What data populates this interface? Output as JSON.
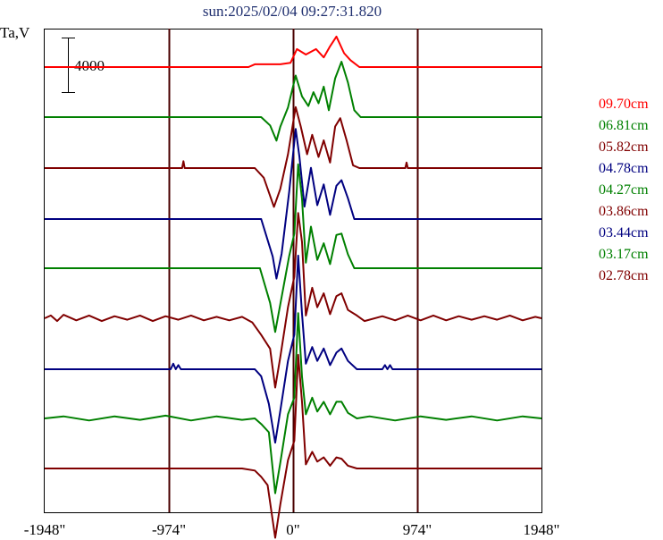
{
  "chart_data": {
    "type": "line",
    "title": "sun:2025/02/04 09:27:31.820",
    "ylabel": "Ta,V",
    "scale_label": "4000",
    "x_ticks": [
      {
        "label": "-1948\"",
        "value": -1948
      },
      {
        "label": "-974\"",
        "value": -974
      },
      {
        "label": "0\"",
        "value": 0
      },
      {
        "label": "974\"",
        "value": 974
      },
      {
        "label": "1948\"",
        "value": 1948
      }
    ],
    "xlim": [
      -1948,
      1948
    ],
    "vertical_lines": [
      -974,
      0,
      974
    ],
    "series": [
      {
        "name": "09.70cm",
        "color": "#ff0000",
        "baseline": 75,
        "points": [
          [
            -1948,
            0
          ],
          [
            -350,
            0
          ],
          [
            -300,
            200
          ],
          [
            -100,
            200
          ],
          [
            -20,
            300
          ],
          [
            30,
            1300
          ],
          [
            100,
            900
          ],
          [
            180,
            1300
          ],
          [
            240,
            700
          ],
          [
            290,
            1500
          ],
          [
            340,
            2200
          ],
          [
            400,
            1000
          ],
          [
            450,
            500
          ],
          [
            520,
            0
          ],
          [
            1948,
            0
          ]
        ]
      },
      {
        "name": "06.81cm",
        "color": "#008000",
        "baseline": 131,
        "points": [
          [
            -1948,
            0
          ],
          [
            -250,
            0
          ],
          [
            -180,
            -600
          ],
          [
            -130,
            -1700
          ],
          [
            -100,
            -700
          ],
          [
            -40,
            700
          ],
          [
            20,
            3000
          ],
          [
            70,
            1500
          ],
          [
            120,
            800
          ],
          [
            160,
            1800
          ],
          [
            200,
            1000
          ],
          [
            240,
            2200
          ],
          [
            280,
            500
          ],
          [
            330,
            2800
          ],
          [
            380,
            4000
          ],
          [
            430,
            2500
          ],
          [
            480,
            500
          ],
          [
            530,
            0
          ],
          [
            1948,
            0
          ]
        ]
      },
      {
        "name": "05.82cm",
        "color": "#800000",
        "baseline": 188,
        "points": [
          [
            -1948,
            0
          ],
          [
            -870,
            0
          ],
          [
            -860,
            500
          ],
          [
            -850,
            0
          ],
          [
            -300,
            0
          ],
          [
            -230,
            -700
          ],
          [
            -150,
            -2800
          ],
          [
            -100,
            -1500
          ],
          [
            -40,
            1000
          ],
          [
            20,
            4400
          ],
          [
            60,
            3000
          ],
          [
            110,
            1000
          ],
          [
            150,
            2400
          ],
          [
            200,
            800
          ],
          [
            240,
            2000
          ],
          [
            290,
            400
          ],
          [
            330,
            3000
          ],
          [
            370,
            3600
          ],
          [
            420,
            2000
          ],
          [
            470,
            200
          ],
          [
            520,
            0
          ],
          [
            880,
            0
          ],
          [
            890,
            400
          ],
          [
            900,
            0
          ],
          [
            1948,
            0
          ]
        ]
      },
      {
        "name": "04.78cm",
        "color": "#000080",
        "baseline": 245,
        "points": [
          [
            -1948,
            0
          ],
          [
            -250,
            0
          ],
          [
            -160,
            -2700
          ],
          [
            -130,
            -4300
          ],
          [
            -90,
            -2500
          ],
          [
            -30,
            2000
          ],
          [
            20,
            6500
          ],
          [
            50,
            4500
          ],
          [
            90,
            900
          ],
          [
            140,
            3700
          ],
          [
            190,
            1000
          ],
          [
            240,
            2500
          ],
          [
            290,
            300
          ],
          [
            340,
            2400
          ],
          [
            380,
            2800
          ],
          [
            430,
            1500
          ],
          [
            480,
            0
          ],
          [
            1948,
            0
          ]
        ]
      },
      {
        "name": "04.27cm",
        "color": "#008000",
        "baseline": 300,
        "points": [
          [
            -1948,
            0
          ],
          [
            -260,
            0
          ],
          [
            -180,
            -2500
          ],
          [
            -140,
            -4600
          ],
          [
            -100,
            -2600
          ],
          [
            -30,
            900
          ],
          [
            10,
            2500
          ],
          [
            40,
            7500
          ],
          [
            70,
            5000
          ],
          [
            100,
            400
          ],
          [
            140,
            3000
          ],
          [
            190,
            600
          ],
          [
            240,
            1800
          ],
          [
            290,
            300
          ],
          [
            340,
            2400
          ],
          [
            380,
            2500
          ],
          [
            430,
            1000
          ],
          [
            480,
            0
          ],
          [
            1948,
            0
          ]
        ]
      },
      {
        "name": "03.86cm",
        "color": "#800000",
        "baseline": 356,
        "points": [
          [
            -1948,
            0
          ],
          [
            -1900,
            200
          ],
          [
            -1850,
            -200
          ],
          [
            -1800,
            250
          ],
          [
            -1700,
            -150
          ],
          [
            -1600,
            200
          ],
          [
            -1500,
            -200
          ],
          [
            -1400,
            150
          ],
          [
            -1300,
            -100
          ],
          [
            -1200,
            200
          ],
          [
            -1100,
            -200
          ],
          [
            -1000,
            150
          ],
          [
            -900,
            -100
          ],
          [
            -800,
            200
          ],
          [
            -700,
            -150
          ],
          [
            -600,
            100
          ],
          [
            -500,
            -150
          ],
          [
            -400,
            100
          ],
          [
            -320,
            -300
          ],
          [
            -250,
            -1200
          ],
          [
            -180,
            -2200
          ],
          [
            -140,
            -5000
          ],
          [
            -100,
            -2800
          ],
          [
            -40,
            800
          ],
          [
            10,
            3000
          ],
          [
            40,
            7600
          ],
          [
            70,
            5500
          ],
          [
            100,
            200
          ],
          [
            150,
            2200
          ],
          [
            190,
            800
          ],
          [
            240,
            1800
          ],
          [
            290,
            300
          ],
          [
            340,
            1600
          ],
          [
            380,
            1800
          ],
          [
            430,
            600
          ],
          [
            500,
            200
          ],
          [
            560,
            -200
          ],
          [
            700,
            150
          ],
          [
            800,
            -150
          ],
          [
            900,
            200
          ],
          [
            1000,
            -150
          ],
          [
            1100,
            200
          ],
          [
            1200,
            -150
          ],
          [
            1300,
            150
          ],
          [
            1400,
            -100
          ],
          [
            1500,
            150
          ],
          [
            1600,
            -100
          ],
          [
            1700,
            200
          ],
          [
            1800,
            -150
          ],
          [
            1900,
            100
          ],
          [
            1948,
            0
          ]
        ]
      },
      {
        "name": "03.44cm",
        "color": "#000080",
        "baseline": 413,
        "points": [
          [
            -1948,
            0
          ],
          [
            -960,
            0
          ],
          [
            -940,
            400
          ],
          [
            -920,
            0
          ],
          [
            -900,
            300
          ],
          [
            -880,
            0
          ],
          [
            -300,
            0
          ],
          [
            -250,
            -500
          ],
          [
            -190,
            -2500
          ],
          [
            -140,
            -5300
          ],
          [
            -100,
            -3000
          ],
          [
            -40,
            600
          ],
          [
            10,
            2500
          ],
          [
            40,
            8200
          ],
          [
            70,
            4000
          ],
          [
            100,
            400
          ],
          [
            150,
            1600
          ],
          [
            190,
            600
          ],
          [
            240,
            1500
          ],
          [
            290,
            300
          ],
          [
            340,
            1200
          ],
          [
            380,
            1500
          ],
          [
            430,
            600
          ],
          [
            500,
            0
          ],
          [
            700,
            0
          ],
          [
            720,
            300
          ],
          [
            740,
            0
          ],
          [
            760,
            300
          ],
          [
            780,
            0
          ],
          [
            1948,
            0
          ]
        ]
      },
      {
        "name": "03.17cm",
        "color": "#008000",
        "baseline": 468,
        "points": [
          [
            -1948,
            0
          ],
          [
            -1800,
            150
          ],
          [
            -1600,
            -150
          ],
          [
            -1400,
            150
          ],
          [
            -1200,
            -100
          ],
          [
            -1000,
            200
          ],
          [
            -800,
            -150
          ],
          [
            -600,
            150
          ],
          [
            -400,
            -100
          ],
          [
            -300,
            0
          ],
          [
            -250,
            -400
          ],
          [
            -190,
            -1000
          ],
          [
            -140,
            -5400
          ],
          [
            -100,
            -3200
          ],
          [
            -40,
            300
          ],
          [
            10,
            1500
          ],
          [
            40,
            7600
          ],
          [
            70,
            3000
          ],
          [
            100,
            300
          ],
          [
            150,
            1500
          ],
          [
            190,
            500
          ],
          [
            240,
            1200
          ],
          [
            290,
            300
          ],
          [
            340,
            1200
          ],
          [
            380,
            1200
          ],
          [
            430,
            400
          ],
          [
            500,
            0
          ],
          [
            600,
            150
          ],
          [
            800,
            -150
          ],
          [
            1000,
            150
          ],
          [
            1200,
            -100
          ],
          [
            1400,
            150
          ],
          [
            1600,
            -150
          ],
          [
            1800,
            150
          ],
          [
            1948,
            0
          ]
        ]
      },
      {
        "name": "02.78cm",
        "color": "#800000",
        "baseline": 524,
        "points": [
          [
            -1948,
            0
          ],
          [
            -400,
            0
          ],
          [
            -300,
            -150
          ],
          [
            -250,
            -600
          ],
          [
            -200,
            -1200
          ],
          [
            -140,
            -5000
          ],
          [
            -100,
            -2600
          ],
          [
            -40,
            600
          ],
          [
            10,
            2000
          ],
          [
            40,
            8200
          ],
          [
            70,
            4800
          ],
          [
            100,
            300
          ],
          [
            150,
            1200
          ],
          [
            190,
            500
          ],
          [
            240,
            800
          ],
          [
            290,
            200
          ],
          [
            340,
            800
          ],
          [
            380,
            700
          ],
          [
            430,
            200
          ],
          [
            500,
            0
          ],
          [
            1948,
            0
          ]
        ]
      }
    ]
  }
}
